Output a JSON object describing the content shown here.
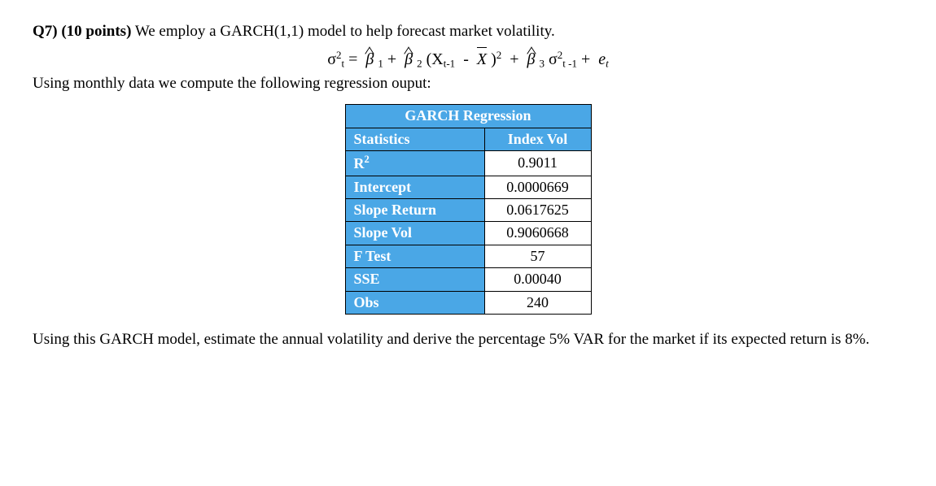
{
  "q": {
    "label": "Q7)",
    "points": "(10 points)",
    "intro": "We employ  a GARCH(1,1)  model  to help  forecast market volatility."
  },
  "formula": {
    "lhs_var": "σ",
    "lhs_sup": "2",
    "lhs_sub": "t",
    "eq": "=",
    "beta": "β",
    "b1_sub": "1",
    "plus": "+",
    "b2_sub": "2",
    "lp": "(",
    "X": "X",
    "x_sub": "t-1",
    "minus": "-",
    "Xbar": "X",
    "rp": ")",
    "sq": "2",
    "b3_sub": "3",
    "sig2": "σ",
    "sig2_sup": "2",
    "sig2_sub": "t -1",
    "e": "e",
    "e_sub": "t"
  },
  "line2": "Using  monthly  data  we compute  the following   regression  ouput:",
  "table": {
    "title": "GARCH Regression",
    "col1": "Statistics",
    "col2": "Index Vol",
    "rows": [
      {
        "label_html": "R<sup style=\"font-size:0.7em\">2</sup>",
        "value": "0.9011"
      },
      {
        "label": "Intercept",
        "value": "0.0000669"
      },
      {
        "label": "Slope Return",
        "value": "0.0617625"
      },
      {
        "label": "Slope Vol",
        "value": "0.9060668"
      },
      {
        "label": "F Test",
        "value": "57"
      },
      {
        "label": "SSE",
        "value": "0.00040"
      },
      {
        "label": "Obs",
        "value": "240"
      }
    ],
    "header_bg": "#4aa7e6",
    "header_color": "#ffffff",
    "border_color": "#000000",
    "cell_bg": "#ffffff"
  },
  "closing": "Using  this  GARCH  model,  estimate  the  annual  volatility  and  derive  the  percentage  5%  VAR for the market if its expected return is  8%."
}
